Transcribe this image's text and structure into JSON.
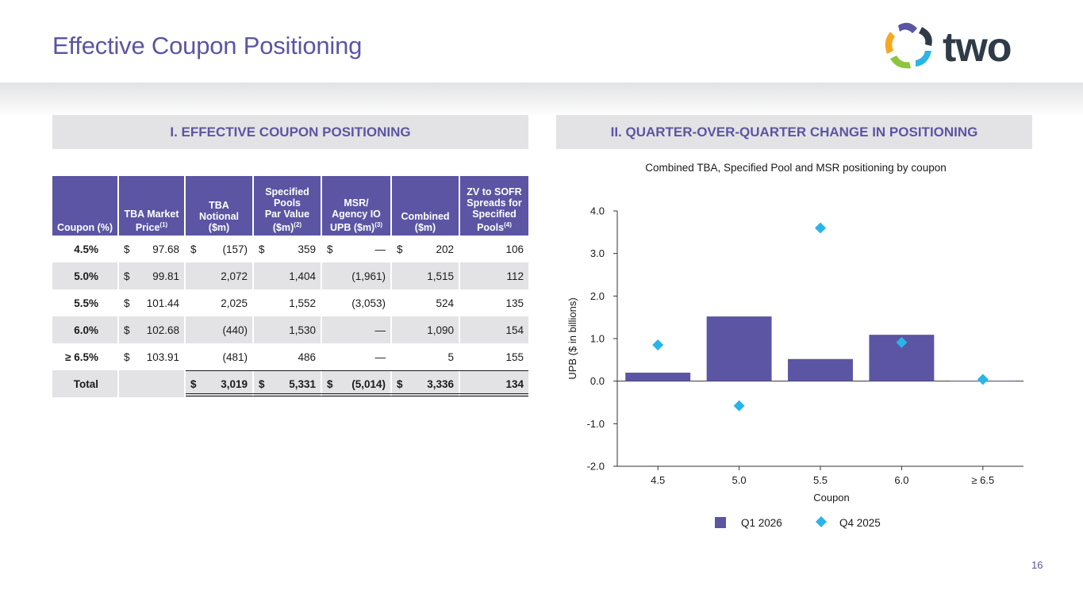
{
  "page": {
    "title": "Effective Coupon Positioning",
    "logo_text": "two",
    "page_number": "16"
  },
  "section1": {
    "heading": "I.   EFFECTIVE COUPON POSITIONING"
  },
  "section2": {
    "heading": "II.   QUARTER-OVER-QUARTER CHANGE IN POSITIONING"
  },
  "table": {
    "headers": [
      {
        "lines": [
          "Coupon (%)"
        ]
      },
      {
        "lines": [
          "TBA Market",
          "Price"
        ],
        "sup": "(1)"
      },
      {
        "lines": [
          "TBA",
          "Notional",
          "($m)"
        ]
      },
      {
        "lines": [
          "Specified",
          "Pools",
          "Par Value",
          "($m)"
        ],
        "sup": "(2)"
      },
      {
        "lines": [
          "MSR/",
          "Agency IO",
          "UPB ($m)"
        ],
        "sup": "(3)"
      },
      {
        "lines": [
          "Combined",
          "($m)"
        ]
      },
      {
        "lines": [
          "ZV to SOFR",
          "Spreads for",
          "Specified",
          "Pools"
        ],
        "sup": "(4)"
      }
    ],
    "rows": [
      {
        "coupon": "4.5%",
        "price": "97.68",
        "tba": "(157)",
        "spec": "359",
        "msr": "—",
        "combined": "202",
        "zv": "106",
        "dollars": true
      },
      {
        "coupon": "5.0%",
        "price": "99.81",
        "tba": "2,072",
        "spec": "1,404",
        "msr": "(1,961)",
        "combined": "1,515",
        "zv": "112",
        "dollars": false
      },
      {
        "coupon": "5.5%",
        "price": "101.44",
        "tba": "2,025",
        "spec": "1,552",
        "msr": "(3,053)",
        "combined": "524",
        "zv": "135",
        "dollars": false
      },
      {
        "coupon": "6.0%",
        "price": "102.68",
        "tba": "(440)",
        "spec": "1,530",
        "msr": "—",
        "combined": "1,090",
        "zv": "154",
        "dollars": false
      },
      {
        "coupon": "≥ 6.5%",
        "price": "103.91",
        "tba": "(481)",
        "spec": "486",
        "msr": "—",
        "combined": "5",
        "zv": "155",
        "dollars": false
      }
    ],
    "total": {
      "label": "Total",
      "tba": "3,019",
      "spec": "5,331",
      "msr": "(5,014)",
      "combined": "3,336",
      "zv": "134"
    },
    "currency": "$"
  },
  "chart_data": {
    "type": "bar",
    "title": "Combined TBA, Specified Pool and MSR positioning by coupon",
    "xlabel": "Coupon",
    "ylabel": "UPB ($ in billions)",
    "categories": [
      "4.5",
      "5.0",
      "5.5",
      "6.0",
      "≥ 6.5"
    ],
    "ylim": [
      -2.0,
      4.0
    ],
    "yticks": [
      "-2.0",
      "-1.0",
      "0.0",
      "1.0",
      "2.0",
      "3.0",
      "4.0"
    ],
    "series": [
      {
        "name": "Q1 2026",
        "kind": "bar",
        "color": "#5b55a3",
        "values": [
          0.2,
          1.52,
          0.52,
          1.09,
          0.005
        ]
      },
      {
        "name": "Q4 2025",
        "kind": "marker",
        "color": "#29b5e8",
        "values": [
          0.85,
          -0.58,
          3.6,
          0.91,
          0.04
        ]
      }
    ],
    "legend_position": "bottom-center",
    "grid": false
  }
}
